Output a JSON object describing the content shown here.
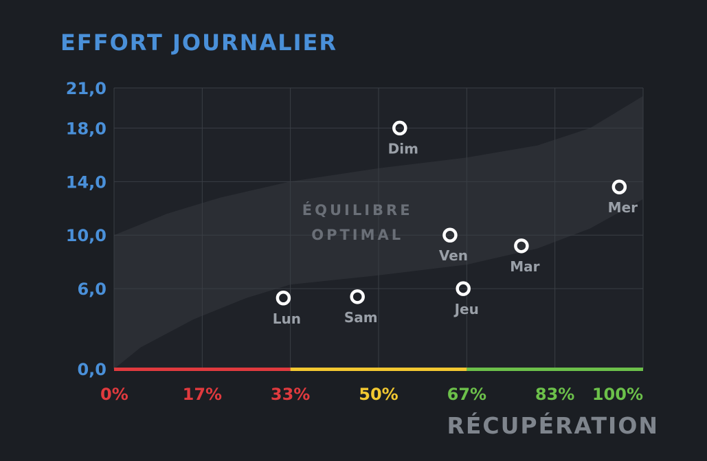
{
  "colors": {
    "background": "#1b1e23",
    "plot_background": "#1f2228",
    "band_fill": "#2b2e34",
    "grid": "#3a3e45",
    "title": "#4a90d9",
    "y_tick": "#4a90d9",
    "point_label": "#9aa0a8",
    "x_title": "#7f858d",
    "band_label": "#6a6f77",
    "marker_stroke": "#ffffff",
    "zone_red": "#e03a3e",
    "zone_yellow": "#f2c831",
    "zone_green": "#6cc04a"
  },
  "chart_data": {
    "type": "scatter",
    "title": "EFFORT JOURNALIER",
    "xlabel": "RÉCUPÉRATION",
    "ylabel": "",
    "xlim": [
      0,
      100
    ],
    "ylim": [
      0,
      21
    ],
    "grid": true,
    "x_ticks": [
      {
        "value": 0,
        "label": "0%",
        "zone": "red"
      },
      {
        "value": 16.67,
        "label": "17%",
        "zone": "red"
      },
      {
        "value": 33.33,
        "label": "33%",
        "zone": "red"
      },
      {
        "value": 50,
        "label": "50%",
        "zone": "yellow"
      },
      {
        "value": 66.67,
        "label": "67%",
        "zone": "green"
      },
      {
        "value": 83.33,
        "label": "83%",
        "zone": "green"
      },
      {
        "value": 100,
        "label": "100%",
        "zone": "green"
      }
    ],
    "y_ticks": [
      {
        "value": 0,
        "label": "0,0"
      },
      {
        "value": 6,
        "label": "6,0"
      },
      {
        "value": 10,
        "label": "10,0"
      },
      {
        "value": 14,
        "label": "14,0"
      },
      {
        "value": 18,
        "label": "18,0"
      },
      {
        "value": 21,
        "label": "21,0"
      }
    ],
    "zones": [
      {
        "from": 0,
        "to": 33.33,
        "color": "red"
      },
      {
        "from": 33.33,
        "to": 66.67,
        "color": "yellow"
      },
      {
        "from": 66.67,
        "to": 100,
        "color": "green"
      }
    ],
    "band": {
      "label_lines": [
        "ÉQUILIBRE",
        "OPTIMAL"
      ],
      "upper": [
        [
          0,
          10
        ],
        [
          10,
          11.6
        ],
        [
          20,
          12.8
        ],
        [
          33.3,
          14
        ],
        [
          50,
          15
        ],
        [
          66.7,
          15.8
        ],
        [
          80,
          16.7
        ],
        [
          90,
          18
        ],
        [
          100,
          20.4
        ]
      ],
      "lower": [
        [
          0,
          0
        ],
        [
          5,
          1.6
        ],
        [
          15,
          3.7
        ],
        [
          25,
          5.3
        ],
        [
          33.3,
          6.3
        ],
        [
          50,
          7
        ],
        [
          66.7,
          7.8
        ],
        [
          80,
          9
        ],
        [
          90,
          10.5
        ],
        [
          100,
          12.7
        ]
      ]
    },
    "points": [
      {
        "label": "Lun",
        "x": 32,
        "y": 5.3
      },
      {
        "label": "Sam",
        "x": 46,
        "y": 5.4
      },
      {
        "label": "Dim",
        "x": 54,
        "y": 18
      },
      {
        "label": "Ven",
        "x": 63.5,
        "y": 10
      },
      {
        "label": "Jeu",
        "x": 66,
        "y": 6
      },
      {
        "label": "Mar",
        "x": 77,
        "y": 9.2
      },
      {
        "label": "Mer",
        "x": 95.5,
        "y": 13.6
      }
    ]
  }
}
